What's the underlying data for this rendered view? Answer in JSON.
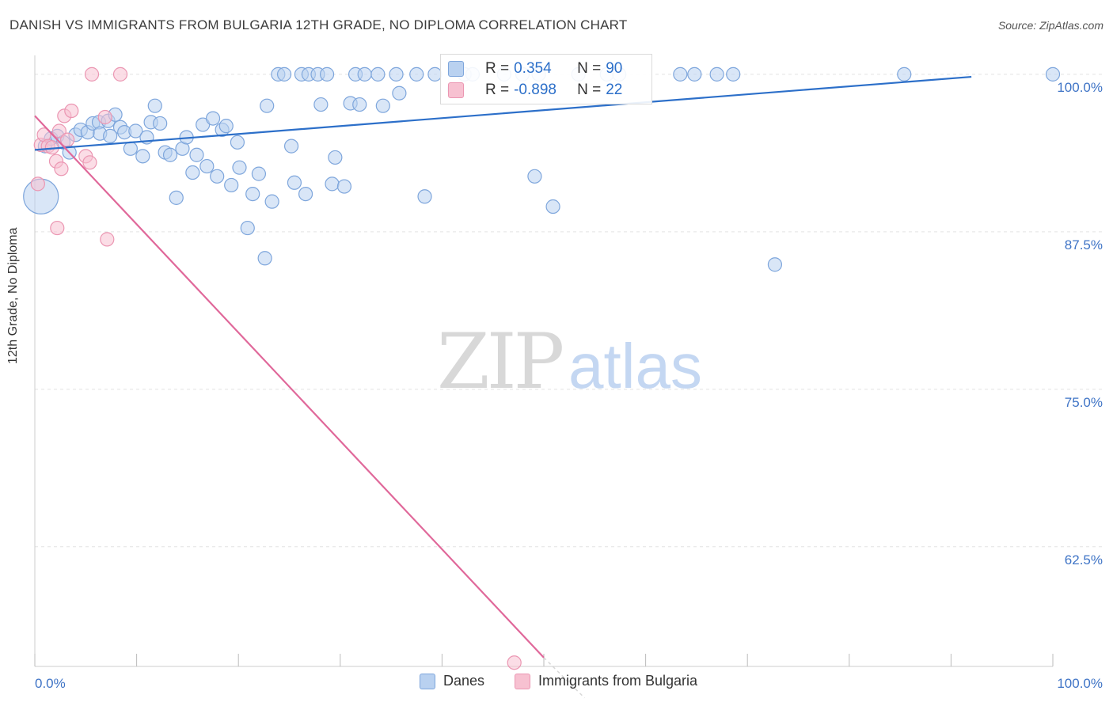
{
  "title": "DANISH VS IMMIGRANTS FROM BULGARIA 12TH GRADE, NO DIPLOMA CORRELATION CHART",
  "source": "Source: ZipAtlas.com",
  "colors": {
    "danes_fill": "#b9d1f0",
    "danes_stroke": "#7ea6dc",
    "danes_line": "#2c6fc9",
    "bulgaria_fill": "#f7c1d1",
    "bulgaria_stroke": "#eb96b2",
    "bulgaria_line": "#e0689a",
    "grid": "#e4e4e4",
    "axis_text": "#3f74c6",
    "watermark_zip": "#d8d8d8",
    "watermark_atlas": "#c4d7f2"
  },
  "watermark": {
    "zip": "ZIP",
    "atlas": "atlas"
  },
  "stats": {
    "danes": {
      "r_label": "R =",
      "r": "0.354",
      "n_label": "N =",
      "n": "90"
    },
    "bulgaria": {
      "r_label": "R =",
      "r": "-0.898",
      "n_label": "N =",
      "n": "22"
    }
  },
  "legend": {
    "danes": "Danes",
    "bulgaria": "Immigrants from Bulgaria"
  },
  "chart_data": {
    "type": "scatter",
    "title": "DANISH VS IMMIGRANTS FROM BULGARIA 12TH GRADE, NO DIPLOMA CORRELATION CHART",
    "xlabel": "",
    "ylabel": "12th Grade, No Diploma",
    "xlim": [
      0,
      100
    ],
    "ylim": [
      53,
      101.5
    ],
    "x_tick_labels": [
      "0.0%",
      "100.0%"
    ],
    "y_ticks": [
      62.5,
      75.0,
      87.5,
      100.0
    ],
    "y_tick_labels": [
      "62.5%",
      "75.0%",
      "87.5%",
      "100.0%"
    ],
    "grid": true,
    "legend_position": "bottom",
    "series": [
      {
        "name": "Danes",
        "trend": {
          "x": [
            0,
            92
          ],
          "y": [
            94.0,
            99.8
          ]
        },
        "points": [
          {
            "x": 0.6,
            "y": 90.3,
            "big": true
          },
          {
            "x": 1.0,
            "y": 94.3
          },
          {
            "x": 1.6,
            "y": 94.9
          },
          {
            "x": 2.2,
            "y": 95.1
          },
          {
            "x": 2.8,
            "y": 94.6
          },
          {
            "x": 3.4,
            "y": 93.8
          },
          {
            "x": 4.0,
            "y": 95.2
          },
          {
            "x": 4.5,
            "y": 95.6
          },
          {
            "x": 5.2,
            "y": 95.4
          },
          {
            "x": 5.7,
            "y": 96.1
          },
          {
            "x": 6.3,
            "y": 96.2
          },
          {
            "x": 6.4,
            "y": 95.3
          },
          {
            "x": 7.2,
            "y": 96.3
          },
          {
            "x": 7.4,
            "y": 95.1
          },
          {
            "x": 7.9,
            "y": 96.8
          },
          {
            "x": 8.4,
            "y": 95.8
          },
          {
            "x": 8.8,
            "y": 95.4
          },
          {
            "x": 9.4,
            "y": 94.1
          },
          {
            "x": 9.9,
            "y": 95.5
          },
          {
            "x": 10.6,
            "y": 93.5
          },
          {
            "x": 11.0,
            "y": 95.0
          },
          {
            "x": 11.4,
            "y": 96.2
          },
          {
            "x": 11.8,
            "y": 97.5
          },
          {
            "x": 12.3,
            "y": 96.1
          },
          {
            "x": 12.8,
            "y": 93.8
          },
          {
            "x": 13.3,
            "y": 93.6
          },
          {
            "x": 13.9,
            "y": 90.2
          },
          {
            "x": 14.5,
            "y": 94.1
          },
          {
            "x": 14.9,
            "y": 95.0
          },
          {
            "x": 15.5,
            "y": 92.2
          },
          {
            "x": 15.9,
            "y": 93.6
          },
          {
            "x": 16.5,
            "y": 96.0
          },
          {
            "x": 16.9,
            "y": 92.7
          },
          {
            "x": 17.5,
            "y": 96.5
          },
          {
            "x": 17.9,
            "y": 91.9
          },
          {
            "x": 18.4,
            "y": 95.6
          },
          {
            "x": 18.8,
            "y": 95.9
          },
          {
            "x": 19.3,
            "y": 91.2
          },
          {
            "x": 19.9,
            "y": 94.6
          },
          {
            "x": 20.1,
            "y": 92.6
          },
          {
            "x": 20.9,
            "y": 87.8
          },
          {
            "x": 21.4,
            "y": 90.5
          },
          {
            "x": 22.0,
            "y": 92.1
          },
          {
            "x": 22.6,
            "y": 85.4
          },
          {
            "x": 22.8,
            "y": 97.5
          },
          {
            "x": 23.3,
            "y": 89.9
          },
          {
            "x": 23.9,
            "y": 100.0
          },
          {
            "x": 24.5,
            "y": 100.0
          },
          {
            "x": 25.2,
            "y": 94.3
          },
          {
            "x": 25.5,
            "y": 91.4
          },
          {
            "x": 26.2,
            "y": 100.0
          },
          {
            "x": 26.6,
            "y": 90.5
          },
          {
            "x": 26.9,
            "y": 100.0
          },
          {
            "x": 27.8,
            "y": 100.0
          },
          {
            "x": 28.1,
            "y": 97.6
          },
          {
            "x": 28.7,
            "y": 100.0
          },
          {
            "x": 29.5,
            "y": 93.4
          },
          {
            "x": 29.2,
            "y": 91.3
          },
          {
            "x": 30.4,
            "y": 91.1
          },
          {
            "x": 31.0,
            "y": 97.7
          },
          {
            "x": 31.5,
            "y": 100.0
          },
          {
            "x": 31.9,
            "y": 97.6
          },
          {
            "x": 32.4,
            "y": 100.0
          },
          {
            "x": 33.7,
            "y": 100.0
          },
          {
            "x": 34.2,
            "y": 97.5
          },
          {
            "x": 35.5,
            "y": 100.0
          },
          {
            "x": 35.8,
            "y": 98.5
          },
          {
            "x": 37.5,
            "y": 100.0
          },
          {
            "x": 38.3,
            "y": 90.3
          },
          {
            "x": 39.3,
            "y": 100.0
          },
          {
            "x": 41.2,
            "y": 98.8
          },
          {
            "x": 42.2,
            "y": 100.0
          },
          {
            "x": 43.0,
            "y": 100.0
          },
          {
            "x": 46.1,
            "y": 100.0
          },
          {
            "x": 47.9,
            "y": 100.0
          },
          {
            "x": 49.1,
            "y": 91.9
          },
          {
            "x": 49.5,
            "y": 100.0
          },
          {
            "x": 50.9,
            "y": 89.5
          },
          {
            "x": 53.4,
            "y": 100.0
          },
          {
            "x": 56.2,
            "y": 100.0
          },
          {
            "x": 57.4,
            "y": 100.0
          },
          {
            "x": 63.4,
            "y": 100.0
          },
          {
            "x": 64.8,
            "y": 100.0
          },
          {
            "x": 67.0,
            "y": 100.0
          },
          {
            "x": 68.6,
            "y": 100.0
          },
          {
            "x": 72.7,
            "y": 84.9
          },
          {
            "x": 85.4,
            "y": 100.0
          },
          {
            "x": 100.0,
            "y": 100.0
          }
        ]
      },
      {
        "name": "Immigrants from Bulgaria",
        "trend": {
          "x": [
            0,
            50.0
          ],
          "y": 96.7,
          "y2": 53.7
        },
        "trend_dash": {
          "x": [
            50.0,
            54.0
          ],
          "y": [
            53.7,
            50.5
          ]
        },
        "points": [
          {
            "x": 0.3,
            "y": 91.3
          },
          {
            "x": 0.6,
            "y": 94.4
          },
          {
            "x": 0.9,
            "y": 95.2
          },
          {
            "x": 1.3,
            "y": 94.3
          },
          {
            "x": 1.7,
            "y": 94.2
          },
          {
            "x": 2.1,
            "y": 93.1
          },
          {
            "x": 2.2,
            "y": 87.8
          },
          {
            "x": 2.4,
            "y": 95.5
          },
          {
            "x": 2.6,
            "y": 92.5
          },
          {
            "x": 2.9,
            "y": 96.7
          },
          {
            "x": 3.2,
            "y": 94.8
          },
          {
            "x": 3.6,
            "y": 97.1
          },
          {
            "x": 5.0,
            "y": 93.5
          },
          {
            "x": 5.4,
            "y": 93.0
          },
          {
            "x": 5.6,
            "y": 100.0
          },
          {
            "x": 7.1,
            "y": 86.9
          },
          {
            "x": 8.4,
            "y": 100.0
          },
          {
            "x": 6.9,
            "y": 96.6
          },
          {
            "x": 47.1,
            "y": 53.3
          }
        ]
      }
    ]
  }
}
